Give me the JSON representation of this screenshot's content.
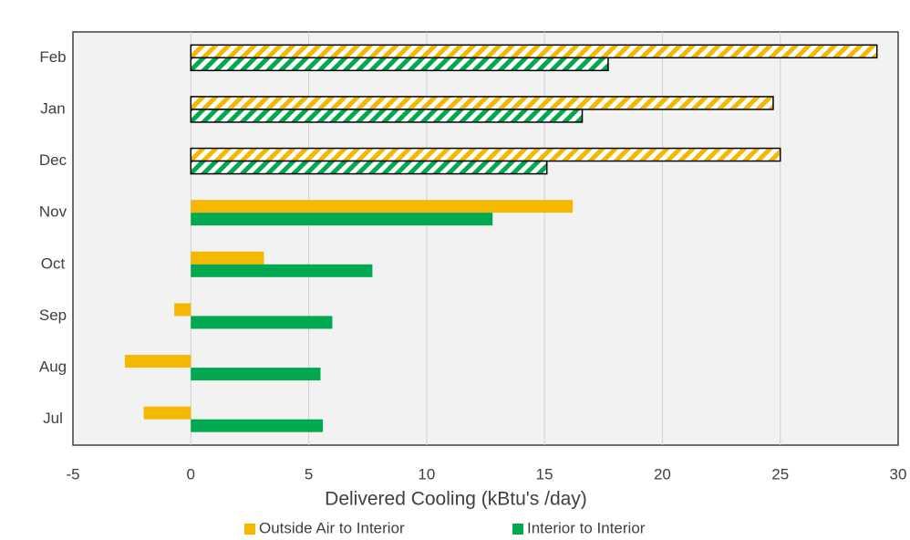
{
  "chart_data": {
    "type": "hbar",
    "x_label": "Delivered Cooling (kBtu's /day)",
    "categories": [
      "Feb",
      "Jan",
      "Dec",
      "Nov",
      "Oct",
      "Sep",
      "Aug",
      "Jul"
    ],
    "hatched": [
      true,
      true,
      true,
      false,
      false,
      false,
      false,
      false
    ],
    "series": [
      {
        "name": "Outside Air to Interior",
        "color": "#f5b800",
        "values": [
          29.1,
          24.7,
          25.0,
          16.2,
          3.1,
          -0.7,
          -2.8,
          -2.0
        ]
      },
      {
        "name": "Interior to Interior",
        "color": "#00a94f",
        "values": [
          17.7,
          16.6,
          15.1,
          12.8,
          7.7,
          6.0,
          5.5,
          5.6
        ]
      }
    ],
    "xlim": [
      -5,
      30
    ],
    "xticks": [
      -5,
      0,
      5,
      10,
      15,
      20,
      25,
      30
    ],
    "grid": true,
    "legend": "bottom"
  }
}
